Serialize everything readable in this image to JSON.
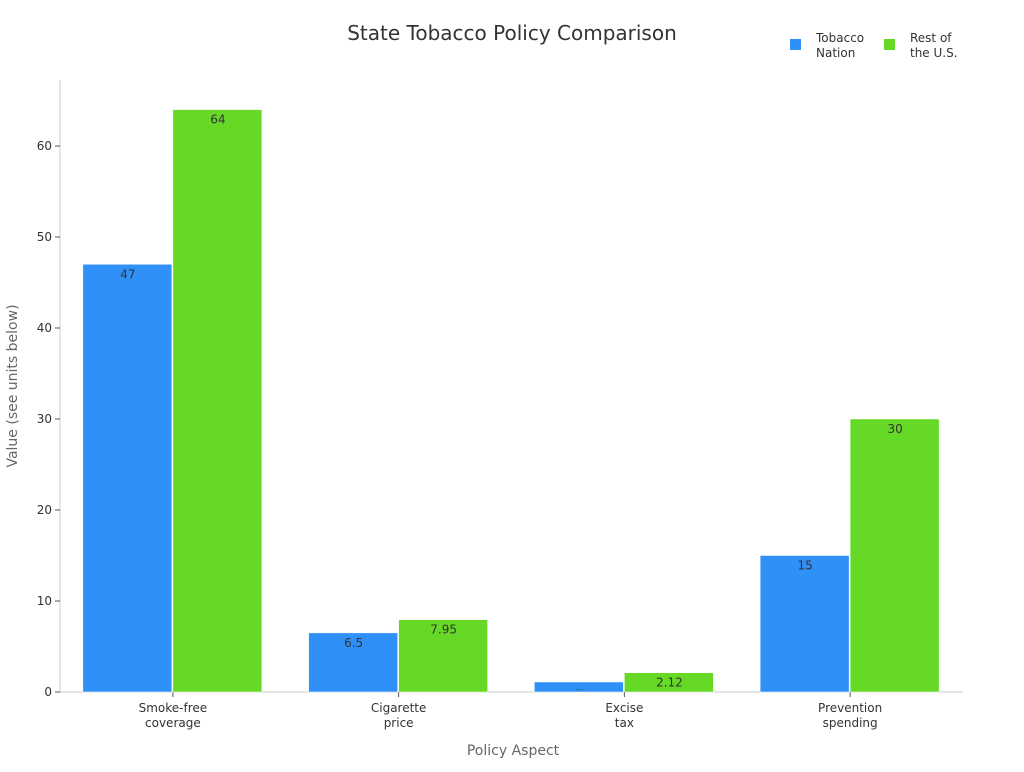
{
  "chart_data": {
    "type": "bar",
    "title": "State Tobacco Policy Comparison",
    "xlabel": "Policy Aspect",
    "ylabel": "Value (see units below)",
    "categories": [
      [
        "Smoke-free",
        "coverage"
      ],
      [
        "Cigarette",
        "price"
      ],
      [
        "Excise",
        "tax"
      ],
      [
        "Prevention",
        "spending"
      ]
    ],
    "series": [
      {
        "name": "Tobacco Nation",
        "legend_lines": [
          "Tobacco",
          "Nation"
        ],
        "color": "#2f90f8",
        "values": [
          47,
          6.5,
          1.1,
          15
        ],
        "labels": [
          "47",
          "6.5",
          "…",
          "15"
        ]
      },
      {
        "name": "Rest of the U.S.",
        "legend_lines": [
          "Rest of",
          "the U.S."
        ],
        "color": "#66d926",
        "values": [
          64,
          7.95,
          2.12,
          30
        ],
        "labels": [
          "64",
          "7.95",
          "2.12",
          "30"
        ]
      }
    ],
    "ylim": [
      0,
      67.3
    ],
    "yticks": [
      0,
      10,
      20,
      30,
      40,
      50,
      60
    ],
    "grid": false,
    "legend_position": "top-right"
  }
}
